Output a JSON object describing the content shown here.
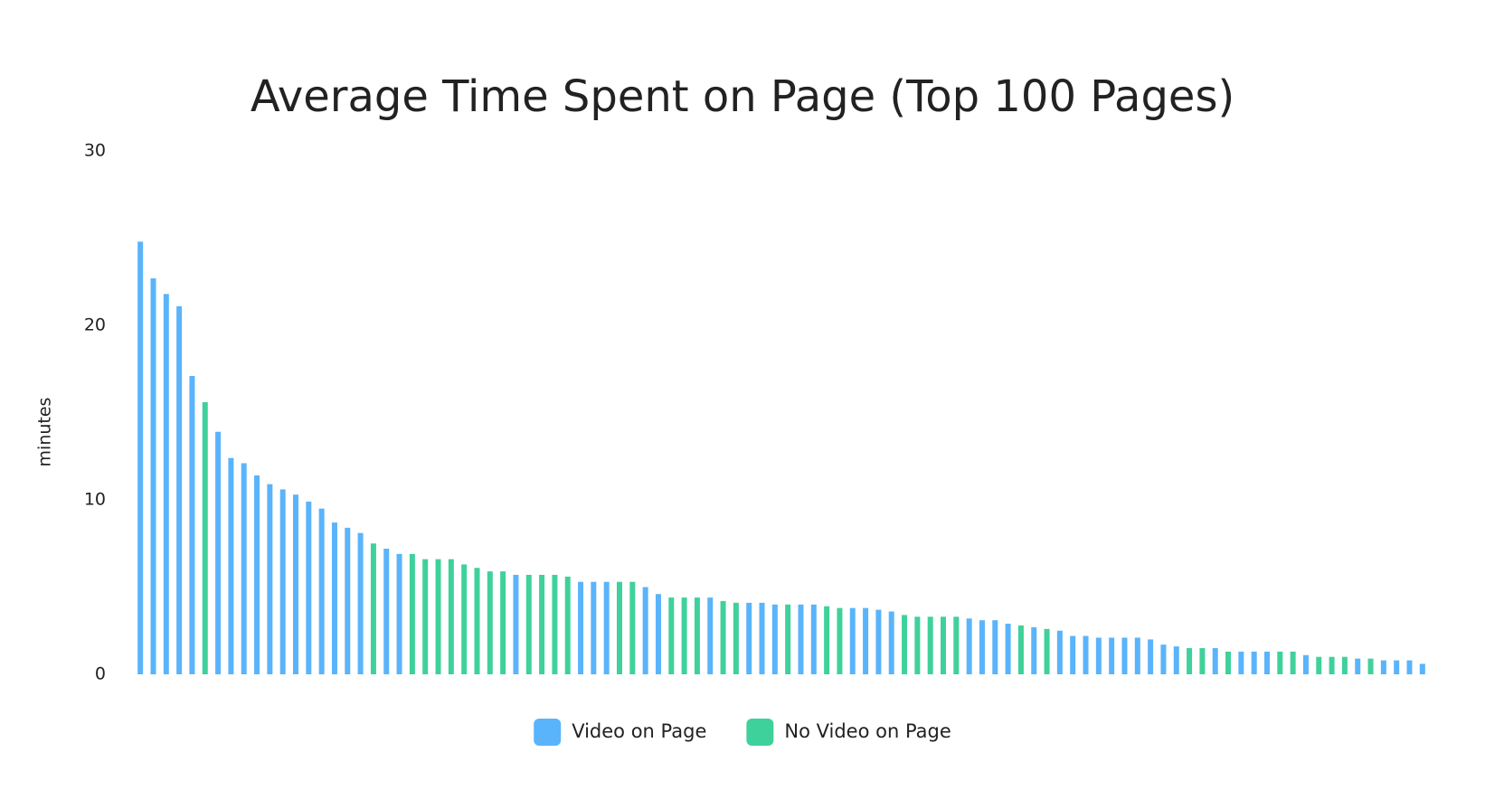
{
  "chart_data": {
    "type": "bar",
    "title": "Average Time Spent on Page (Top 100 Pages)",
    "y_label": "minutes",
    "categories": [
      null,
      null,
      null,
      null,
      null,
      null,
      null,
      null,
      null,
      null,
      null,
      null,
      null,
      null,
      null,
      null,
      null,
      null,
      null,
      null,
      null,
      null,
      null,
      null,
      null,
      null,
      null,
      null,
      null,
      null,
      null,
      null,
      null,
      null,
      null,
      null,
      null,
      null,
      null,
      null,
      null,
      null,
      null,
      null,
      null,
      null,
      null,
      null,
      null,
      null,
      null,
      null,
      null,
      null,
      null,
      null,
      null,
      null,
      null,
      null,
      null,
      null,
      null,
      null,
      null,
      null,
      null,
      null,
      null,
      null,
      null,
      null,
      null,
      null,
      null,
      null,
      null,
      null,
      null,
      null,
      null,
      null,
      null,
      null,
      null,
      null,
      null,
      null,
      null,
      null,
      null,
      null,
      null,
      null,
      null,
      null,
      null,
      null,
      null,
      null
    ],
    "series": [
      {
        "name": "Video on Page",
        "color": "#5ab4fb",
        "values": [
          24.8,
          22.7,
          21.8,
          21.1,
          17.1,
          null,
          13.9,
          12.4,
          12.1,
          11.4,
          10.9,
          10.6,
          10.3,
          9.9,
          9.5,
          8.7,
          8.4,
          8.1,
          null,
          7.2,
          6.9,
          null,
          null,
          null,
          null,
          null,
          null,
          null,
          null,
          5.7,
          null,
          null,
          null,
          null,
          5.3,
          5.3,
          5.3,
          null,
          null,
          5.0,
          4.6,
          null,
          null,
          null,
          4.4,
          null,
          null,
          4.1,
          4.1,
          4.0,
          null,
          4.0,
          4.0,
          null,
          null,
          3.8,
          3.8,
          3.7,
          3.6,
          null,
          null,
          null,
          null,
          null,
          3.2,
          3.1,
          3.1,
          2.9,
          null,
          2.7,
          null,
          2.5,
          2.2,
          2.2,
          2.1,
          2.1,
          2.1,
          2.1,
          2.0,
          1.7,
          1.6,
          null,
          null,
          1.5,
          null,
          1.3,
          1.3,
          1.3,
          null,
          null,
          1.1,
          null,
          null,
          null,
          0.9,
          null,
          0.8,
          0.8,
          0.8,
          0.6
        ]
      },
      {
        "name": "No Video on Page",
        "color": "#3fd19b",
        "values": [
          null,
          null,
          null,
          null,
          null,
          15.6,
          null,
          null,
          null,
          null,
          null,
          null,
          null,
          null,
          null,
          null,
          null,
          null,
          7.5,
          null,
          null,
          6.9,
          6.6,
          6.6,
          6.6,
          6.3,
          6.1,
          5.9,
          5.9,
          null,
          5.7,
          5.7,
          5.7,
          5.6,
          null,
          null,
          null,
          5.3,
          5.3,
          null,
          null,
          4.4,
          4.4,
          4.4,
          null,
          4.2,
          4.1,
          null,
          null,
          null,
          4.0,
          null,
          null,
          3.9,
          3.8,
          null,
          null,
          null,
          null,
          3.4,
          3.3,
          3.3,
          3.3,
          3.3,
          null,
          null,
          null,
          null,
          2.8,
          null,
          2.6,
          null,
          null,
          null,
          null,
          null,
          null,
          null,
          null,
          null,
          null,
          1.5,
          1.5,
          null,
          1.3,
          null,
          null,
          null,
          1.3,
          1.3,
          null,
          1.0,
          1.0,
          1.0,
          null,
          0.9,
          null,
          null,
          null,
          null
        ]
      }
    ],
    "ylim": [
      0,
      30
    ],
    "yticks": [
      0,
      10,
      20,
      30
    ],
    "grid": false,
    "legend": "bottom"
  }
}
